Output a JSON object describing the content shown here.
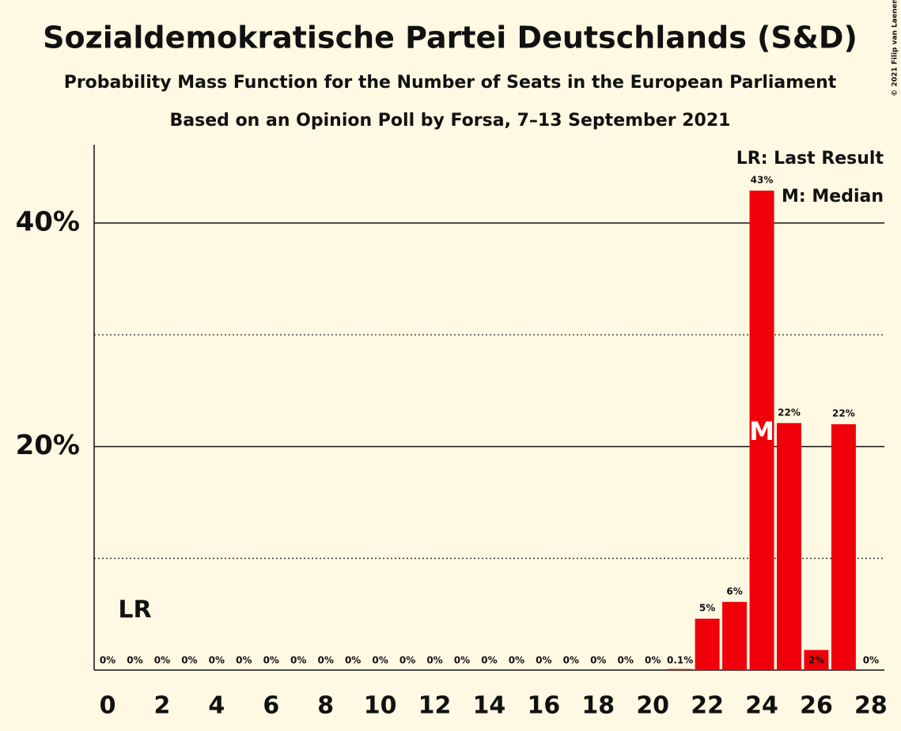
{
  "chart_data": {
    "type": "bar",
    "title": "Sozialdemokratische Partei Deutschlands (S&D)",
    "subtitle": "Probability Mass Function for the Number of Seats in the European Parliament",
    "subtitle2": "Based on an Opinion Poll by Forsa, 7–13 September 2021",
    "copyright": "© 2021 Filip van Laenen",
    "categories": [
      "0",
      null,
      "2",
      null,
      "4",
      null,
      "6",
      null,
      "8",
      null,
      "10",
      null,
      "12",
      null,
      "14",
      null,
      "16",
      null,
      "18",
      null,
      "20",
      null,
      "22",
      null,
      "24",
      null,
      "26",
      null,
      "28"
    ],
    "values": [
      0,
      0,
      0,
      0,
      0,
      0,
      0,
      0,
      0,
      0,
      0,
      0,
      0,
      0,
      0,
      0,
      0,
      0,
      0,
      0,
      0,
      0.1,
      4.6,
      6.1,
      42.9,
      22.1,
      1.8,
      22.0,
      0
    ],
    "value_labels": [
      "0%",
      "0%",
      "0%",
      "0%",
      "0%",
      "0%",
      "0%",
      "0%",
      "0%",
      "0%",
      "0%",
      "0%",
      "0%",
      "0%",
      "0%",
      "0%",
      "0%",
      "0%",
      "0%",
      "0%",
      "0%",
      "0.1%",
      "5%",
      "6%",
      "43%",
      "22%",
      "2%",
      "22%",
      "0%"
    ],
    "color": "#f0000a",
    "ylim": [
      0,
      47
    ],
    "yticks": [
      {
        "value": 20,
        "label": "20%"
      },
      {
        "value": 40,
        "label": "40%"
      }
    ],
    "minor_gridlines": [
      10,
      30
    ],
    "grid": true,
    "last_result": 1,
    "last_result_label": "LR",
    "median": 24,
    "median_label": "M",
    "legend": [
      "LR: Last Result",
      "M: Median"
    ]
  }
}
